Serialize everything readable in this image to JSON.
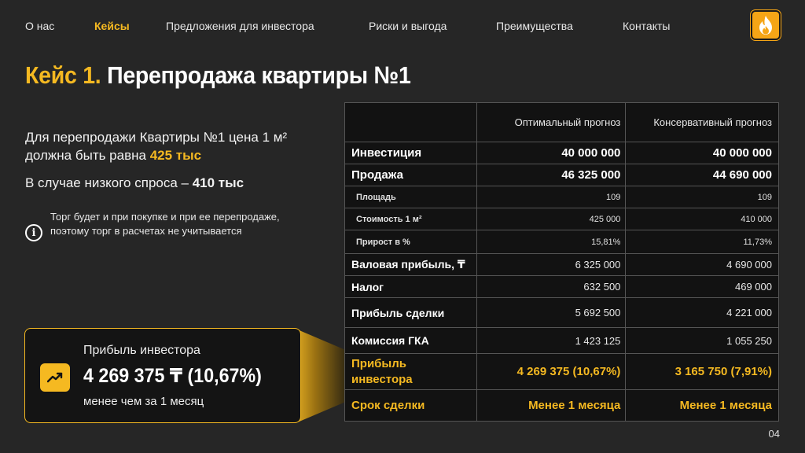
{
  "nav": {
    "items": [
      {
        "label": "О нас"
      },
      {
        "label": "Кейсы"
      },
      {
        "label": "Предложения для инвестора"
      },
      {
        "label": "Риски и выгода"
      },
      {
        "label": "Преимущества"
      },
      {
        "label": "Контакты"
      }
    ],
    "active": "Кейсы",
    "logo_icon": "flame-icon"
  },
  "title": {
    "prefix": "Кейс 1.",
    "main": "Перепродажа квартиры №1"
  },
  "lead": {
    "text": "Для перепродажи Квартиры №1 цена 1 м² должна быть равна",
    "price": "425 тыс",
    "low_demand_text": "В случае низкого спроса –",
    "low_demand_price": "410 тыс"
  },
  "note": {
    "icon": "info-icon",
    "text": "Торг будет и при покупке и при ее перепродаже, поэтому торг в расчетах не учитывается"
  },
  "card": {
    "label": "Прибыль инвестора",
    "value": "4 269 375 ₸ (10,67%)",
    "sub": "менее чем за 1 месяц",
    "icon": "trending-up-icon"
  },
  "table": {
    "headers": [
      "",
      "Оптимальный прогноз",
      "Консервативный прогноз"
    ],
    "rows": [
      {
        "label": "Инвестиция",
        "opt": "40 000 000",
        "cons": "40 000 000"
      },
      {
        "label": "Продажа",
        "opt": "46 325 000",
        "cons": "44 690 000"
      },
      {
        "label": "Площадь",
        "opt": "109",
        "cons": "109"
      },
      {
        "label": "Стоимость 1 м²",
        "opt": "425 000",
        "cons": "410 000"
      },
      {
        "label": "Прирост в %",
        "opt": "15,81%",
        "cons": "11,73%"
      },
      {
        "label": "Валовая прибыль, ₸",
        "opt": "6 325 000",
        "cons": "4 690 000"
      },
      {
        "label": "Налог",
        "opt": "632 500",
        "cons": "469 000"
      },
      {
        "label": "Прибыль сделки",
        "opt": "5 692 500",
        "cons": "4 221 000"
      },
      {
        "label": "Комиссия ГКА",
        "opt": "1 423 125",
        "cons": "1 055 250"
      },
      {
        "label": "Прибыль инвестора",
        "opt": "4 269 375 (10,67%)",
        "cons": "3 165 750 (7,91%)"
      },
      {
        "label": "Срок сделки",
        "opt": "Менее 1 месяца",
        "cons": "Менее 1 месяца"
      }
    ]
  },
  "page_number": "04",
  "colors": {
    "accent": "#f5b921",
    "background": "#262626",
    "table_bg": "#121212"
  }
}
